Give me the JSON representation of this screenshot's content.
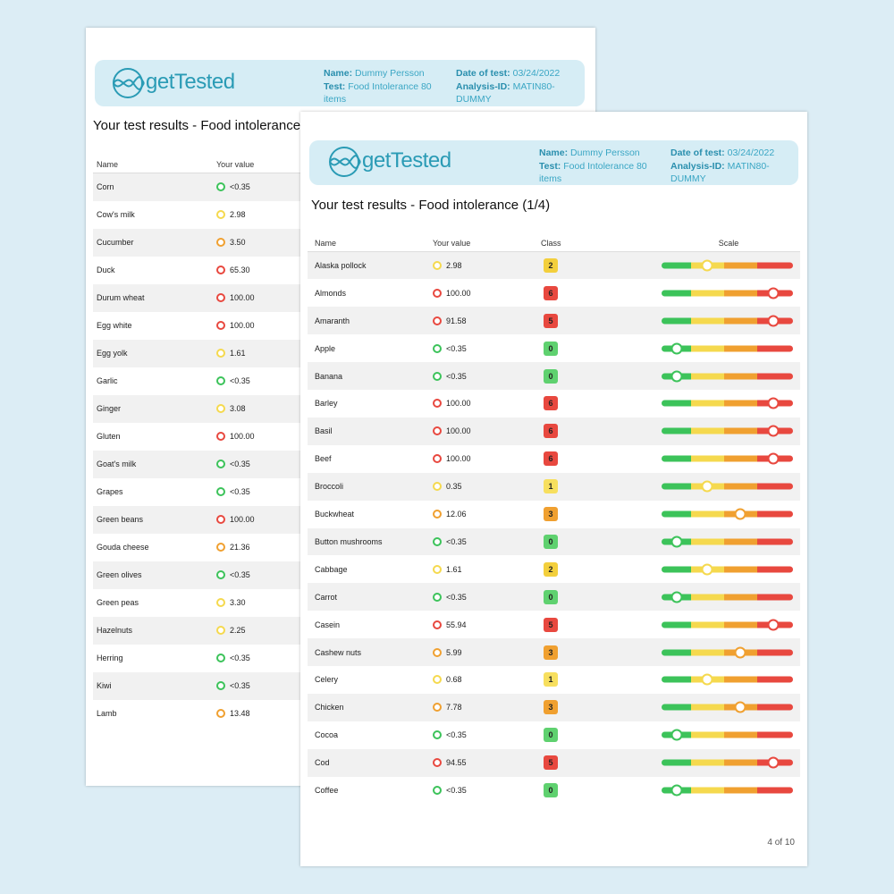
{
  "pages": [
    {
      "header": {
        "logo": "getTested",
        "name_label": "Name:",
        "name": "Dummy Persson",
        "test_label": "Test:",
        "test": "Food Intolerance 80 items",
        "date_label": "Date of test:",
        "date": "03/24/2022",
        "analysis_label": "Analysis-ID:",
        "analysis": "MATIN80-DUMMY"
      },
      "title": "Your test results - Food intolerance",
      "columns": [
        "Name",
        "Your value"
      ],
      "rows": [
        {
          "name": "Corn",
          "value": "<0.35",
          "color": "#3cc35a"
        },
        {
          "name": "Cow's milk",
          "value": "2.98",
          "color": "#f5d94e"
        },
        {
          "name": "Cucumber",
          "value": "3.50",
          "color": "#f0a030"
        },
        {
          "name": "Duck",
          "value": "65.30",
          "color": "#e8483f"
        },
        {
          "name": "Durum wheat",
          "value": "100.00",
          "color": "#e8483f"
        },
        {
          "name": "Egg white",
          "value": "100.00",
          "color": "#e8483f"
        },
        {
          "name": "Egg yolk",
          "value": "1.61",
          "color": "#f5d94e"
        },
        {
          "name": "Garlic",
          "value": "<0.35",
          "color": "#3cc35a"
        },
        {
          "name": "Ginger",
          "value": "3.08",
          "color": "#f5d94e"
        },
        {
          "name": "Gluten",
          "value": "100.00",
          "color": "#e8483f"
        },
        {
          "name": "Goat's milk",
          "value": "<0.35",
          "color": "#3cc35a"
        },
        {
          "name": "Grapes",
          "value": "<0.35",
          "color": "#3cc35a"
        },
        {
          "name": "Green beans",
          "value": "100.00",
          "color": "#e8483f"
        },
        {
          "name": "Gouda cheese",
          "value": "21.36",
          "color": "#f0a030"
        },
        {
          "name": "Green olives",
          "value": "<0.35",
          "color": "#3cc35a"
        },
        {
          "name": "Green peas",
          "value": "3.30",
          "color": "#f5d94e"
        },
        {
          "name": "Hazelnuts",
          "value": "2.25",
          "color": "#f5d94e"
        },
        {
          "name": "Herring",
          "value": "<0.35",
          "color": "#3cc35a"
        },
        {
          "name": "Kiwi",
          "value": "<0.35",
          "color": "#3cc35a"
        },
        {
          "name": "Lamb",
          "value": "13.48",
          "color": "#f0a030"
        }
      ]
    },
    {
      "header": {
        "logo": "getTested",
        "name_label": "Name:",
        "name": "Dummy Persson",
        "test_label": "Test:",
        "test": "Food Intolerance 80 items",
        "date_label": "Date of test:",
        "date": "03/24/2022",
        "analysis_label": "Analysis-ID:",
        "analysis": "MATIN80-DUMMY"
      },
      "title": "Your test results - Food intolerance (1/4)",
      "columns": [
        "Name",
        "Your value",
        "Class",
        "Scale"
      ],
      "rows": [
        {
          "name": "Alaska pollock",
          "value": "2.98",
          "class": 2
        },
        {
          "name": "Almonds",
          "value": "100.00",
          "class": 6
        },
        {
          "name": "Amaranth",
          "value": "91.58",
          "class": 5
        },
        {
          "name": "Apple",
          "value": "<0.35",
          "class": 0
        },
        {
          "name": "Banana",
          "value": "<0.35",
          "class": 0
        },
        {
          "name": "Barley",
          "value": "100.00",
          "class": 6
        },
        {
          "name": "Basil",
          "value": "100.00",
          "class": 6
        },
        {
          "name": "Beef",
          "value": "100.00",
          "class": 6
        },
        {
          "name": "Broccoli",
          "value": "0.35",
          "class": 1
        },
        {
          "name": "Buckwheat",
          "value": "12.06",
          "class": 3
        },
        {
          "name": "Button mushrooms",
          "value": "<0.35",
          "class": 0
        },
        {
          "name": "Cabbage",
          "value": "1.61",
          "class": 2
        },
        {
          "name": "Carrot",
          "value": "<0.35",
          "class": 0
        },
        {
          "name": "Casein",
          "value": "55.94",
          "class": 5
        },
        {
          "name": "Cashew nuts",
          "value": "5.99",
          "class": 3
        },
        {
          "name": "Celery",
          "value": "0.68",
          "class": 1
        },
        {
          "name": "Chicken",
          "value": "7.78",
          "class": 3
        },
        {
          "name": "Cocoa",
          "value": "<0.35",
          "class": 0
        },
        {
          "name": "Cod",
          "value": "94.55",
          "class": 5
        },
        {
          "name": "Coffee",
          "value": "<0.35",
          "class": 0
        }
      ],
      "footer": "4 of 10"
    }
  ]
}
